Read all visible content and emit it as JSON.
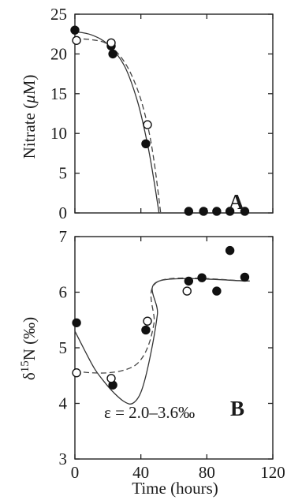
{
  "chart_data": [
    {
      "type": "scatter",
      "panel": "A",
      "ylabel_parts": [
        "Nitrate (",
        "μ",
        "M)"
      ],
      "xlim": [
        0,
        120
      ],
      "ylim": [
        0,
        25
      ],
      "yticks": [
        0,
        5,
        10,
        15,
        20,
        25
      ],
      "series": [
        {
          "marker": "filled-circle",
          "points": [
            [
              0,
              23
            ],
            [
              22,
              21
            ],
            [
              23,
              20
            ],
            [
              43,
              8.7
            ],
            [
              69,
              0.2
            ],
            [
              78,
              0.2
            ],
            [
              86,
              0.2
            ],
            [
              94,
              0.2
            ],
            [
              103,
              0.2
            ]
          ]
        },
        {
          "marker": "open-circle",
          "points": [
            [
              1,
              21.7
            ],
            [
              22,
              21.4
            ],
            [
              44,
              11.1
            ]
          ]
        }
      ],
      "fits": [
        {
          "style": "solid",
          "points": [
            [
              0,
              22.8
            ],
            [
              10,
              22.4
            ],
            [
              20,
              21.2
            ],
            [
              30,
              18.5
            ],
            [
              38,
              14
            ],
            [
              44,
              8.7
            ],
            [
              48,
              4
            ],
            [
              51,
              0
            ]
          ]
        },
        {
          "style": "dashed",
          "points": [
            [
              0,
              21.9
            ],
            [
              10,
              21.8
            ],
            [
              20,
              21.2
            ],
            [
              30,
              19
            ],
            [
              38,
              15.5
            ],
            [
              44,
              11.1
            ],
            [
              48,
              6.5
            ],
            [
              52,
              0
            ]
          ]
        },
        {
          "style": "solid",
          "points": [
            [
              51,
              0
            ],
            [
              106,
              0
            ]
          ]
        }
      ]
    },
    {
      "type": "scatter",
      "panel": "B",
      "ylabel_parts": [
        "δ",
        "15",
        "N (‰)"
      ],
      "xlabel": "Time (hours)",
      "xlim": [
        0,
        120
      ],
      "ylim": [
        3,
        7
      ],
      "xticks": [
        0,
        40,
        80,
        120
      ],
      "yticks": [
        3,
        4,
        5,
        6,
        7
      ],
      "annotation": "ε = 2.0–3.6‰",
      "series": [
        {
          "marker": "filled-circle",
          "points": [
            [
              1,
              5.45
            ],
            [
              23,
              4.33
            ],
            [
              43,
              5.32
            ],
            [
              69,
              6.2
            ],
            [
              77,
              6.26
            ],
            [
              86,
              6.02
            ],
            [
              94,
              6.75
            ],
            [
              103,
              6.27
            ]
          ]
        },
        {
          "marker": "open-circle",
          "points": [
            [
              1,
              4.55
            ],
            [
              22,
              4.45
            ],
            [
              44,
              5.48
            ],
            [
              68,
              6.02
            ]
          ]
        }
      ],
      "fits": [
        {
          "style": "solid",
          "points": [
            [
              0,
              5.3
            ],
            [
              6,
              4.95
            ],
            [
              12,
              4.62
            ],
            [
              18,
              4.38
            ],
            [
              24,
              4.18
            ],
            [
              30,
              4.03
            ],
            [
              35,
              4.0
            ],
            [
              40,
              4.2
            ],
            [
              45,
              4.75
            ],
            [
              50,
              5.6
            ],
            [
              51,
              6.2
            ],
            [
              106,
              6.2
            ]
          ]
        },
        {
          "style": "dashed",
          "points": [
            [
              0,
              4.58
            ],
            [
              10,
              4.55
            ],
            [
              20,
              4.55
            ],
            [
              30,
              4.6
            ],
            [
              38,
              4.72
            ],
            [
              44,
              5.0
            ],
            [
              48,
              5.45
            ],
            [
              51,
              6.2
            ],
            [
              106,
              6.2
            ]
          ]
        }
      ]
    }
  ]
}
